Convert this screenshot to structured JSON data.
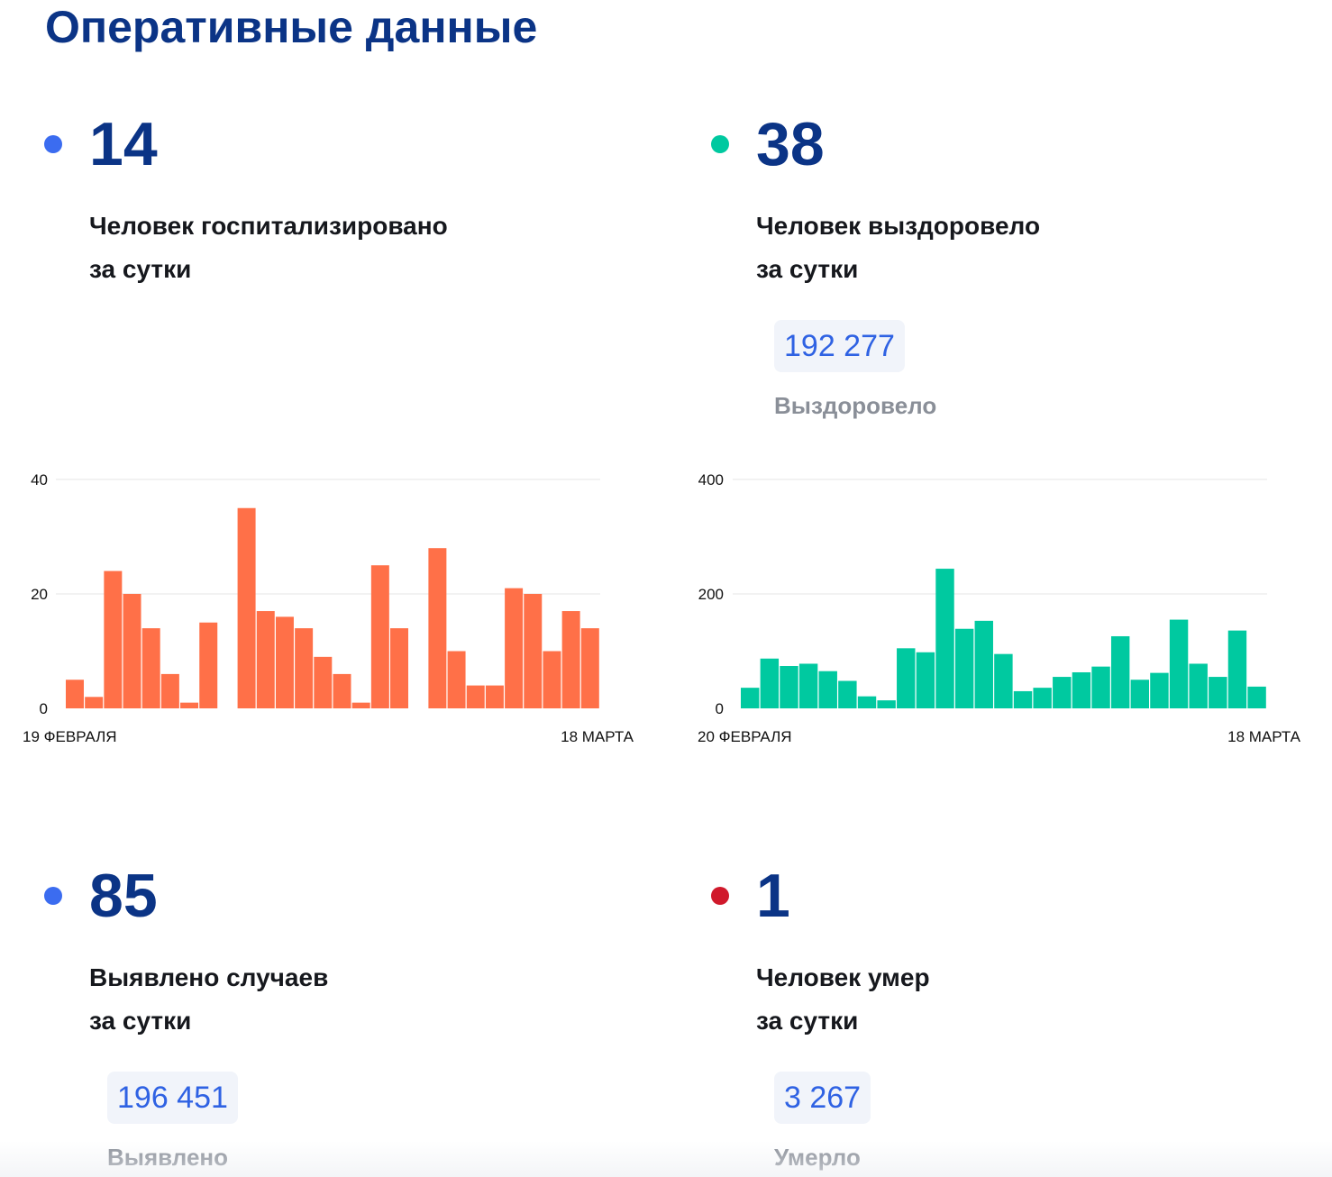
{
  "title": "Оперативные данные",
  "colors": {
    "title": "#0b3486",
    "dot_blue": "#3b6cf0",
    "dot_green": "#00c9a0",
    "dot_red": "#d0192b",
    "bar_orange": "#ff7048",
    "bar_teal": "#00c9a0",
    "badge_text": "#2f62e3"
  },
  "stats": {
    "hospitalized": {
      "value": "14",
      "line1": "Человек госпитализировано",
      "line2": "за сутки"
    },
    "recovered": {
      "value": "38",
      "line1": "Человек выздоровело",
      "line2": "за сутки",
      "total": "192 277",
      "total_label": "Выздоровело"
    },
    "cases": {
      "value": "85",
      "line1": "Выявлено случаев",
      "line2": "за сутки",
      "total": "196 451",
      "total_label": "Выявлено"
    },
    "deaths": {
      "value": "1",
      "line1": "Человек умер",
      "line2": "за сутки",
      "total": "3 267",
      "total_label": "Умерло"
    }
  },
  "chart_data": [
    {
      "type": "bar",
      "x_start_label": "19 ФЕВРАЛЯ",
      "x_end_label": "18 МАРТА",
      "yticks": [
        "0",
        "20",
        "40"
      ],
      "ylim": [
        0,
        40
      ],
      "values": [
        5,
        2,
        24,
        20,
        14,
        6,
        1,
        15,
        0,
        35,
        17,
        16,
        14,
        9,
        6,
        1,
        25,
        14,
        0,
        28,
        10,
        4,
        4,
        21,
        20,
        10,
        17,
        14
      ],
      "grid": true
    },
    {
      "type": "bar",
      "x_start_label": "20 ФЕВРАЛЯ",
      "x_end_label": "18 МАРТА",
      "yticks": [
        "0",
        "200",
        "400"
      ],
      "ylim": [
        0,
        400
      ],
      "values": [
        36,
        87,
        74,
        78,
        65,
        48,
        21,
        14,
        105,
        98,
        244,
        139,
        153,
        95,
        30,
        36,
        55,
        63,
        73,
        126,
        50,
        62,
        155,
        78,
        55,
        136,
        38
      ],
      "grid": true
    }
  ]
}
